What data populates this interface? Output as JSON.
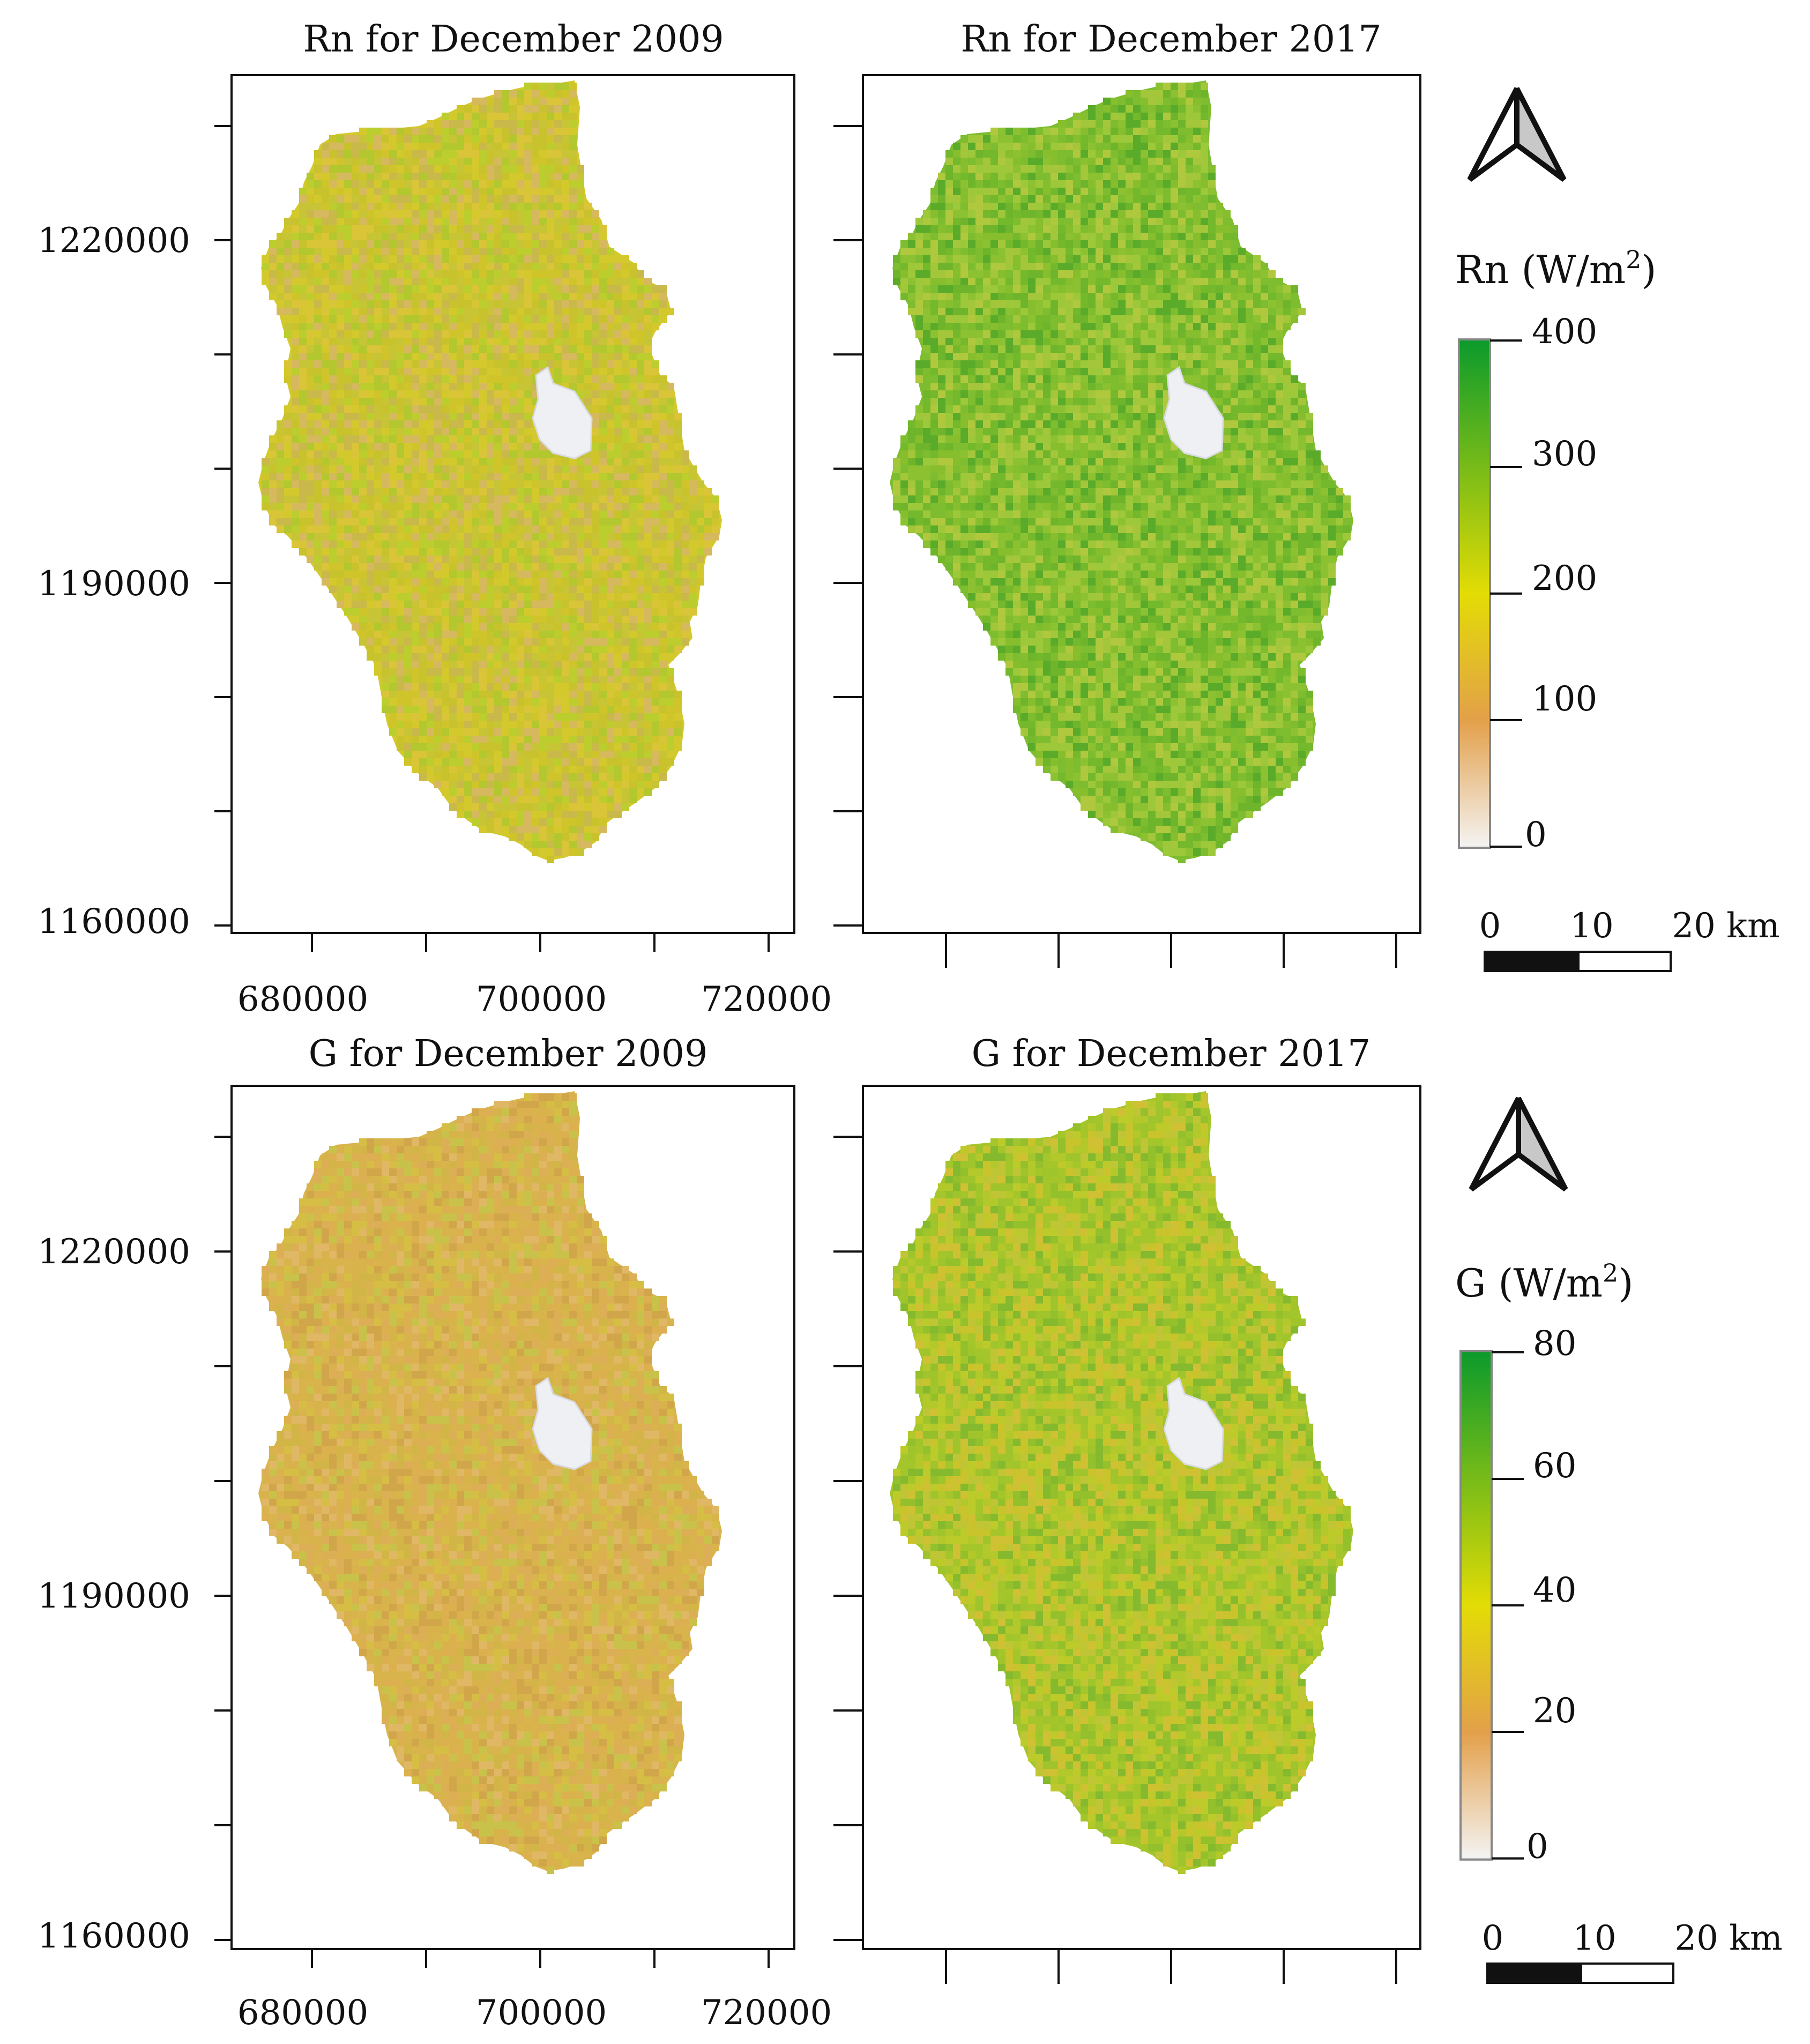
{
  "panels": [
    {
      "title": "Rn for December 2009",
      "palette": [
        "#d4c92c",
        "#cfc52a",
        "#c8c22c",
        "#d9c537",
        "#c9b84a",
        "#bccd2e",
        "#b3c72e",
        "#d6b85e",
        "#c7c436"
      ],
      "y_ticks": [
        "1220000",
        "1190000",
        "1160000"
      ],
      "x_ticks": [
        "680000",
        "700000",
        "720000"
      ]
    },
    {
      "title": "Rn for December 2017",
      "palette": [
        "#7dbd2f",
        "#6fb52b",
        "#8cc232",
        "#9cc83a",
        "#5aab2a",
        "#86be2e",
        "#a4c63a",
        "#74b82c",
        "#b0c83e"
      ],
      "y_ticks": [],
      "x_ticks": []
    },
    {
      "title": "G for December 2009",
      "palette": [
        "#d9b44c",
        "#dcb04e",
        "#d2b547",
        "#e0b865",
        "#d1a64a",
        "#d6be44",
        "#dcae56",
        "#c9c24a",
        "#d8b24a"
      ],
      "y_ticks": [
        "1220000",
        "1190000",
        "1160000"
      ],
      "x_ticks": [
        "680000",
        "700000",
        "720000"
      ]
    },
    {
      "title": "G for December 2017",
      "palette": [
        "#a4c62a",
        "#bccb2a",
        "#94c02c",
        "#c9c32c",
        "#86ba2e",
        "#b3c82a",
        "#d0c033",
        "#9fc42c",
        "#c0c536"
      ],
      "y_ticks": [],
      "x_ticks": []
    }
  ],
  "legends": [
    {
      "title": "Rn (W/m",
      "superscript": "2",
      "suffix": ")",
      "ticks": [
        "400",
        "300",
        "200",
        "100",
        "0"
      ],
      "colors": {
        "max": "#0b9a2c",
        "mid": "#e3dc05",
        "low": "#e3a04a",
        "min": "#f4f4f4"
      }
    },
    {
      "title": "G (W/m",
      "superscript": "2",
      "suffix": ")",
      "ticks": [
        "80",
        "60",
        "40",
        "20",
        "0"
      ],
      "colors": {
        "max": "#0b9a2c",
        "mid": "#e3dc05",
        "low": "#e3a04a",
        "min": "#f4f4f4"
      }
    }
  ],
  "scale_bar": {
    "labels": [
      "0",
      "10",
      "20 km"
    ]
  },
  "north_arrow": {
    "icon": "north-arrow-icon"
  },
  "lake_color": "#eef0f3"
}
